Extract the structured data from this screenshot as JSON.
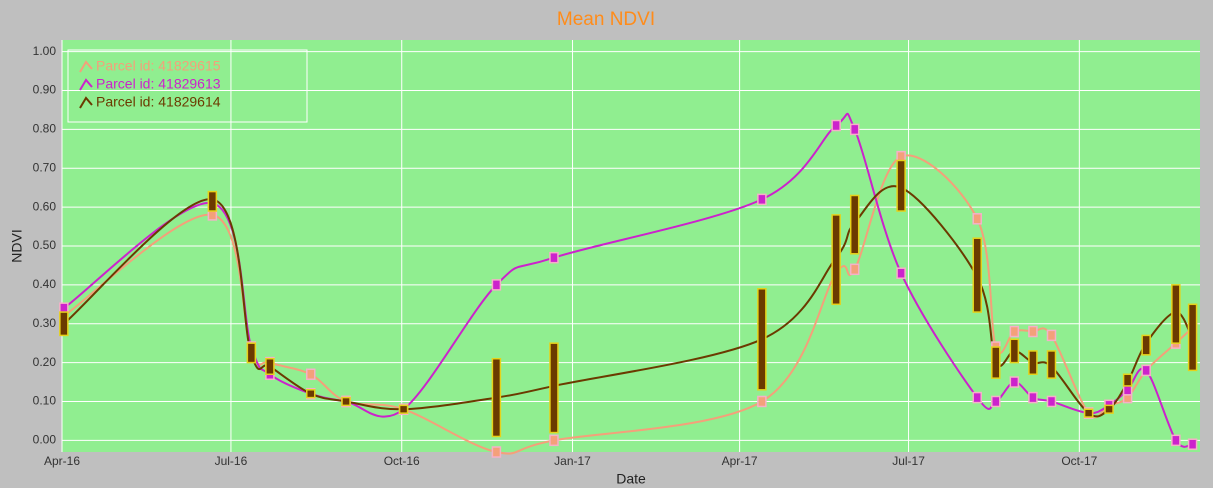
{
  "chart_data": {
    "type": "line",
    "title": "Mean NDVI",
    "x_label": "Date",
    "y_label": "NDVI",
    "x": [
      "2016-04-02",
      "2016-06-21",
      "2016-07-12",
      "2016-07-22",
      "2016-08-13",
      "2016-09-01",
      "2016-10-02",
      "2016-11-21",
      "2016-12-22",
      "2017-04-13",
      "2017-05-23",
      "2017-06-02",
      "2017-06-27",
      "2017-08-07",
      "2017-08-17",
      "2017-08-27",
      "2017-09-06",
      "2017-09-16",
      "2017-10-06",
      "2017-10-17",
      "2017-10-27",
      "2017-11-06",
      "2017-11-22",
      "2017-12-01"
    ],
    "series": [
      {
        "name": "Parcel id: 41829615",
        "color": "#f4a07a",
        "values": [
          0.32,
          0.58,
          0.23,
          0.2,
          0.17,
          0.1,
          0.08,
          -0.03,
          0.0,
          0.1,
          0.43,
          0.44,
          0.73,
          0.57,
          0.24,
          0.28,
          0.28,
          0.27,
          0.07,
          0.09,
          0.11,
          0.18,
          0.25,
          0.29
        ]
      },
      {
        "name": "Parcel id: 41829613",
        "color": "#cc22cc",
        "values": [
          0.34,
          0.61,
          0.24,
          0.17,
          0.12,
          0.1,
          0.08,
          0.4,
          0.47,
          0.62,
          0.81,
          0.8,
          0.43,
          0.11,
          0.1,
          0.15,
          0.11,
          0.1,
          0.07,
          0.09,
          0.13,
          0.18,
          0.0,
          -0.01
        ]
      },
      {
        "name": "Parcel id: 41829614",
        "color": "#6b3a00",
        "values": [
          0.3,
          0.62,
          0.22,
          0.19,
          0.12,
          0.1,
          0.08,
          0.11,
          0.14,
          0.26,
          0.47,
          0.56,
          0.65,
          0.42,
          0.2,
          0.23,
          0.2,
          0.19,
          0.07,
          0.08,
          0.15,
          0.25,
          0.33,
          0.26
        ],
        "low": [
          0.27,
          0.59,
          0.2,
          0.17,
          0.11,
          0.09,
          0.07,
          0.01,
          0.02,
          0.13,
          0.35,
          0.48,
          0.59,
          0.33,
          0.16,
          0.2,
          0.17,
          0.16,
          0.06,
          0.07,
          0.14,
          0.22,
          0.25,
          0.18
        ],
        "high": [
          0.33,
          0.64,
          0.25,
          0.21,
          0.13,
          0.11,
          0.09,
          0.21,
          0.25,
          0.39,
          0.58,
          0.63,
          0.72,
          0.52,
          0.24,
          0.26,
          0.23,
          0.23,
          0.08,
          0.09,
          0.17,
          0.27,
          0.4,
          0.35
        ]
      }
    ],
    "xlim": [
      "2016-04-01",
      "2017-12-05"
    ],
    "xticks": [
      {
        "value": "2016-04-01",
        "label": "Apr-16"
      },
      {
        "value": "2016-07-01",
        "label": "Jul-16"
      },
      {
        "value": "2016-10-01",
        "label": "Oct-16"
      },
      {
        "value": "2017-01-01",
        "label": "Jan-17"
      },
      {
        "value": "2017-04-01",
        "label": "Apr-17"
      },
      {
        "value": "2017-07-01",
        "label": "Jul-17"
      },
      {
        "value": "2017-10-01",
        "label": "Oct-17"
      }
    ],
    "ylim": [
      -0.03,
      1.03
    ],
    "yticks": [
      {
        "value": 0,
        "label": "0.00"
      },
      {
        "value": 0.1,
        "label": "0.10"
      },
      {
        "value": 0.2,
        "label": "0.20"
      },
      {
        "value": 0.3,
        "label": "0.30"
      },
      {
        "value": 0.4,
        "label": "0.40"
      },
      {
        "value": 0.5,
        "label": "0.50"
      },
      {
        "value": 0.6,
        "label": "0.60"
      },
      {
        "value": 0.7,
        "label": "0.70"
      },
      {
        "value": 0.8,
        "label": "0.80"
      },
      {
        "value": 0.9,
        "label": "0.90"
      },
      {
        "value": 1,
        "label": "1.00"
      }
    ],
    "grid": true,
    "legend": "upper left"
  }
}
